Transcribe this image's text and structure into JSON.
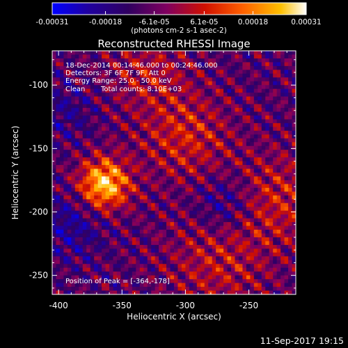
{
  "chart_data": {
    "type": "heatmap",
    "title": "Reconstructed RHESSI Image",
    "xlabel": "Heliocentric X (arcsec)",
    "ylabel": "Heliocentric Y (arcsec)",
    "xlim": [
      -405,
      -213
    ],
    "ylim": [
      -265,
      -73
    ],
    "x_ticks": [
      -400,
      -350,
      -300,
      -250
    ],
    "y_ticks": [
      -250,
      -200,
      -150,
      -100
    ],
    "x_tick_labels": [
      "-400",
      "-350",
      "-300",
      "-250"
    ],
    "y_tick_labels": [
      "-250",
      "-200",
      "-150",
      "-100"
    ],
    "colorbar": {
      "min": -0.00031,
      "max": 0.00031,
      "ticks": [
        -0.00031,
        -0.00018,
        -6.1e-05,
        6.1e-05,
        0.00018,
        0.00031
      ],
      "tick_labels": [
        "-0.00031",
        "-0.00018",
        "-6.1e-05",
        "6.1e-05",
        "0.00018",
        "0.00031"
      ],
      "units_label": "(photons cm-2 s-1 asec-2)",
      "colormap": [
        "#0000ff",
        "#2000a0",
        "#300060",
        "#800060",
        "#d01000",
        "#ff6000",
        "#ffc000",
        "#ffffff"
      ]
    },
    "annotations": {
      "time_range": "18-Dec-2014 00:14:46.000 to 00:24:46.000",
      "detectors": "Detectors: 3F 6F 7F 9F, Att 0",
      "energy_range": "Energy Range: 25.0 - 50.0 keV",
      "algorithm": "Clean",
      "total_counts": "Total counts: 8.10E+03",
      "peak_position": "Position of Peak = [-364,-178]"
    },
    "peak": {
      "x": -364,
      "y": -178
    },
    "grid": false,
    "image_grid": {
      "nx": 64,
      "ny": 64
    }
  },
  "footer": {
    "timestamp": "11-Sep-2017 19:15"
  }
}
